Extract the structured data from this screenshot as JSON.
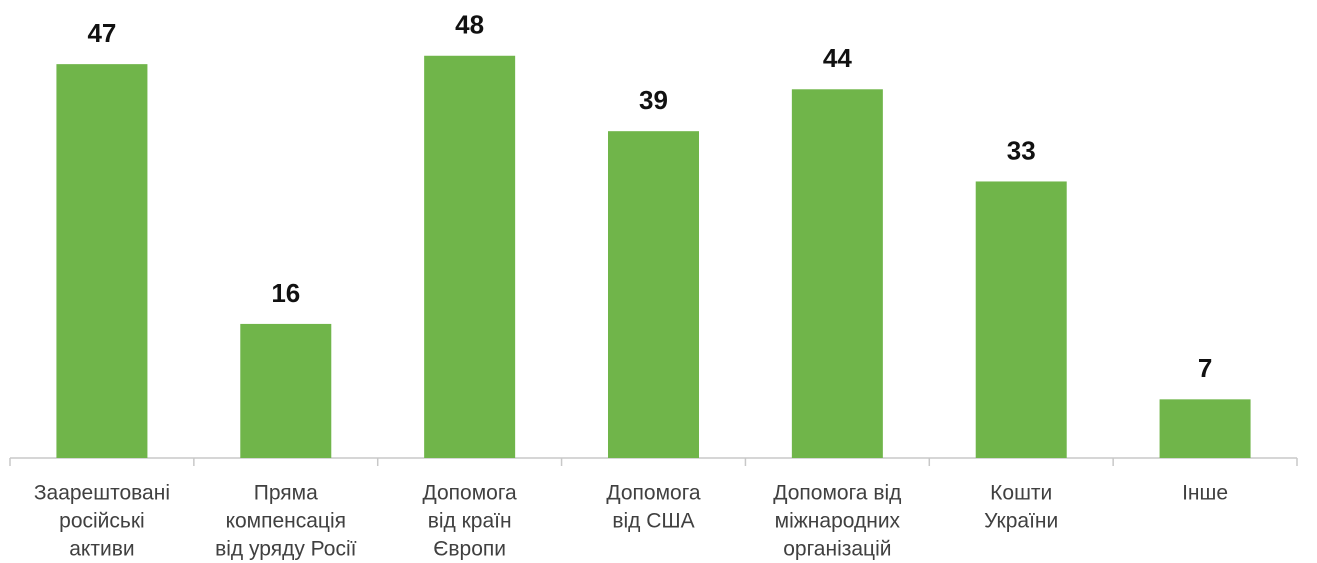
{
  "chart_data": {
    "type": "bar",
    "categories": [
      [
        "Заарештовані",
        "російські",
        "активи"
      ],
      [
        "Пряма",
        "компенсація",
        "від уряду Росії"
      ],
      [
        "Допомога",
        "від країн",
        "Європи"
      ],
      [
        "Допомога",
        "від США"
      ],
      [
        "Допомога від",
        "міжнародних",
        "організацій"
      ],
      [
        "Кошти",
        "України"
      ],
      [
        "Інше"
      ]
    ],
    "values": [
      47,
      16,
      48,
      39,
      44,
      33,
      7
    ],
    "color": "#70b54a",
    "ylim": [
      0,
      50
    ]
  }
}
